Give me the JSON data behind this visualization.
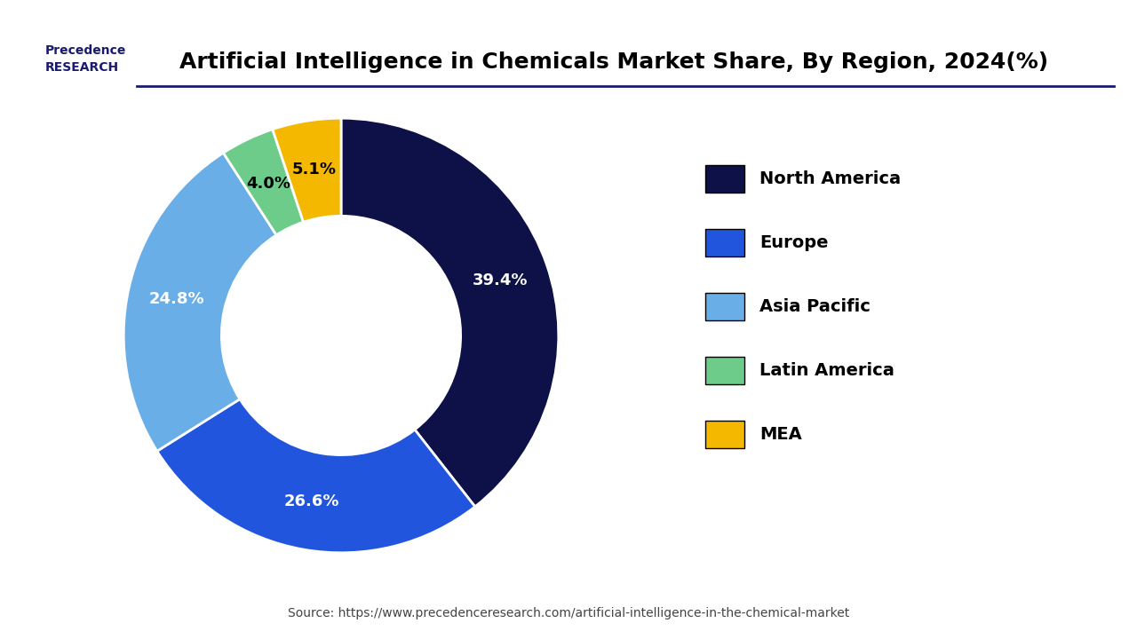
{
  "title": "Artificial Intelligence in Chemicals Market Share, By Region, 2024(%)",
  "slices": [
    {
      "label": "North America",
      "value": 39.4,
      "color": "#0d1147",
      "text_color": "white"
    },
    {
      "label": "Europe",
      "value": 26.6,
      "color": "#2255dd",
      "text_color": "white"
    },
    {
      "label": "Asia Pacific",
      "value": 24.8,
      "color": "#6aaee8",
      "text_color": "white"
    },
    {
      "label": "Latin America",
      "value": 4.0,
      "color": "#6dcc8a",
      "text_color": "black"
    },
    {
      "label": "MEA",
      "value": 5.1,
      "color": "#f5b800",
      "text_color": "black"
    }
  ],
  "source_text": "Source: https://www.precedenceresearch.com/artificial-intelligence-in-the-chemical-market",
  "background_color": "#ffffff",
  "title_fontsize": 18,
  "legend_fontsize": 14,
  "label_fontsize": 13,
  "source_fontsize": 10,
  "donut_width": 0.45
}
